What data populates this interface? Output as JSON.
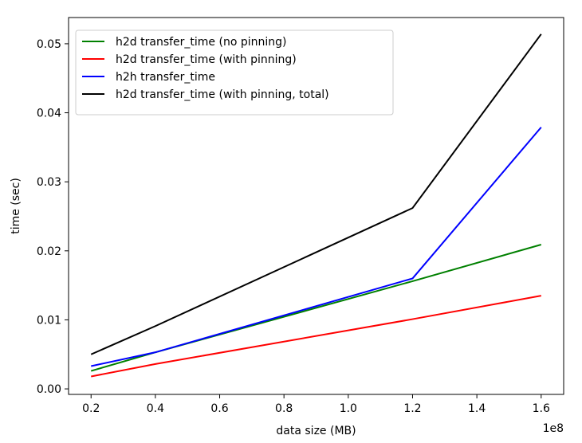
{
  "chart_data": {
    "type": "line",
    "title": "",
    "xlabel": "data size (MB)",
    "ylabel": "time (sec)",
    "x_offset_label": "1e8",
    "x": [
      20000000,
      40000000,
      120000000,
      160000000
    ],
    "xlim": [
      13000000,
      167000000
    ],
    "ylim": [
      -0.0008,
      0.0538
    ],
    "xticks": [
      20000000,
      40000000,
      60000000,
      80000000,
      100000000,
      120000000,
      140000000,
      160000000
    ],
    "xtick_labels": [
      "0.2",
      "0.4",
      "0.6",
      "0.8",
      "1.0",
      "1.2",
      "1.4",
      "1.6"
    ],
    "yticks": [
      0.0,
      0.01,
      0.02,
      0.03,
      0.04,
      0.05
    ],
    "ytick_labels": [
      "0.00",
      "0.01",
      "0.02",
      "0.03",
      "0.04",
      "0.05"
    ],
    "grid": false,
    "legend_position": "top-left",
    "series": [
      {
        "name": "h2d transfer_time (no pinning)",
        "color": "#008000",
        "values": [
          0.0026,
          0.0053,
          0.0156,
          0.0209
        ]
      },
      {
        "name": "h2d transfer_time (with pinning)",
        "color": "#ff0000",
        "values": [
          0.0018,
          0.0036,
          0.0101,
          0.0135
        ]
      },
      {
        "name": "h2h transfer_time",
        "color": "#0000ff",
        "values": [
          0.0033,
          0.0053,
          0.016,
          0.0379
        ]
      },
      {
        "name": "h2d transfer_time (with pinning, total)",
        "color": "#000000",
        "values": [
          0.005,
          0.0091,
          0.0262,
          0.0514
        ]
      }
    ]
  }
}
